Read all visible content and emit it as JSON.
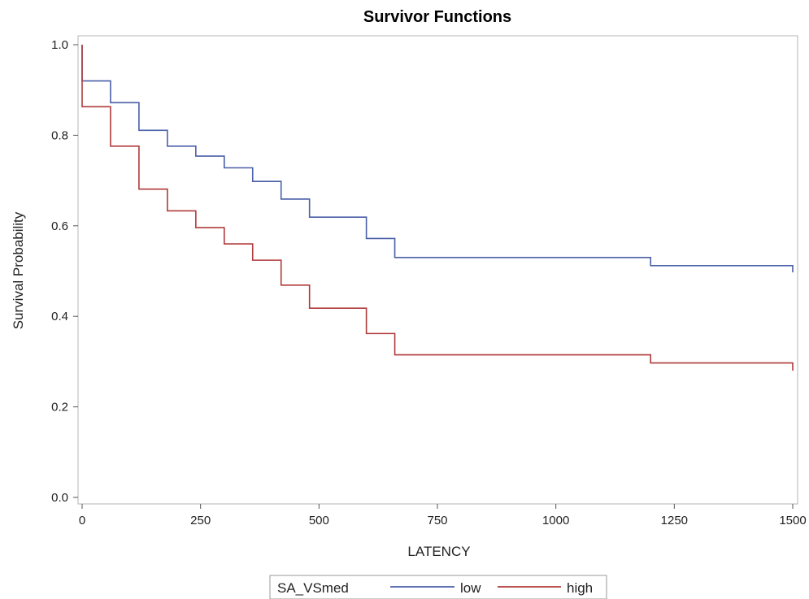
{
  "chart_data": {
    "type": "line",
    "step": true,
    "title": "Survivor Functions",
    "xlabel": "LATENCY",
    "ylabel": "Survival Probability",
    "xlim": [
      0,
      1500
    ],
    "ylim": [
      0,
      1
    ],
    "xticks": [
      "0",
      "250",
      "500",
      "750",
      "1000",
      "1250",
      "1500"
    ],
    "yticks": [
      "0.0",
      "0.2",
      "0.4",
      "0.6",
      "0.8",
      "1.0"
    ],
    "grid": false,
    "legend": {
      "title": "SA_VSmed",
      "placement": "bottom"
    },
    "series": [
      {
        "name": "low",
        "color": "#4a5fa8",
        "x": [
          0,
          0,
          60,
          120,
          180,
          240,
          300,
          360,
          420,
          480,
          600,
          660,
          1200,
          1500
        ],
        "y": [
          1.0,
          0.92,
          0.872,
          0.811,
          0.776,
          0.754,
          0.728,
          0.698,
          0.659,
          0.619,
          0.572,
          0.53,
          0.512,
          0.497
        ]
      },
      {
        "name": "high",
        "color": "#b03a3a",
        "x": [
          0,
          0,
          60,
          120,
          180,
          240,
          300,
          360,
          420,
          480,
          600,
          660,
          1200,
          1500
        ],
        "y": [
          1.0,
          0.863,
          0.776,
          0.681,
          0.633,
          0.596,
          0.56,
          0.524,
          0.469,
          0.418,
          0.362,
          0.315,
          0.297,
          0.28
        ]
      }
    ]
  }
}
